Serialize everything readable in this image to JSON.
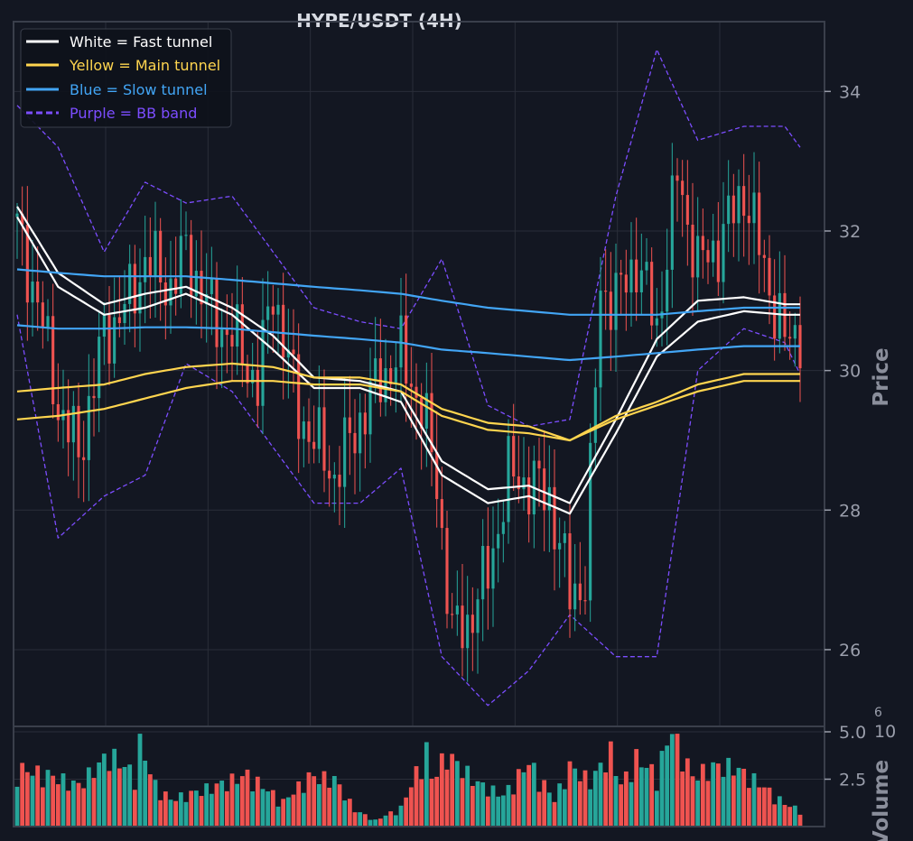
{
  "colors": {
    "background": "#131722",
    "grid": "#2a2e39",
    "frame": "#3a3f4b",
    "candle_up": "#26a69a",
    "candle_down": "#ef5350",
    "fast": "#ffffff",
    "main": "#ffd54f",
    "slow": "#42a5f5",
    "bb": "#7c4dff"
  },
  "chart_data": {
    "type": "line",
    "title": "HYPE/USDT (4H)",
    "price_axis": {
      "label": "Price",
      "ticks": [
        "26",
        "28",
        "30",
        "32",
        "34"
      ],
      "ylim": [
        24.9,
        35
      ]
    },
    "volume_axis": {
      "label": "Volume",
      "multiplier": "10",
      "multiplier_exp": "6",
      "ticks": [
        "2.5",
        "5.0"
      ],
      "ylim": [
        0,
        5.0
      ]
    },
    "legend": {
      "placement": "top-left",
      "entries": [
        {
          "label": "White = Fast tunnel",
          "color": "#ffffff",
          "style": "solid"
        },
        {
          "label": "Yellow = Main tunnel",
          "color": "#ffd54f",
          "style": "solid"
        },
        {
          "label": "Blue = Slow tunnel",
          "color": "#42a5f5",
          "style": "solid"
        },
        {
          "label": "Purple = BB band",
          "color": "#7c4dff",
          "style": "dashed"
        }
      ]
    },
    "x": [
      0,
      8,
      17,
      25,
      33,
      42,
      50,
      58,
      67,
      75,
      83,
      92,
      100,
      108,
      117,
      125,
      133,
      142,
      150,
      153
    ],
    "series": [
      {
        "name": "Fast tunnel upper",
        "color": "#ffffff",
        "values": [
          32.35,
          31.4,
          30.95,
          31.1,
          31.2,
          30.9,
          30.5,
          29.9,
          29.85,
          29.7,
          28.7,
          28.3,
          28.35,
          28.1,
          29.3,
          30.45,
          31.0,
          31.05,
          30.95,
          30.95
        ]
      },
      {
        "name": "Fast tunnel lower",
        "color": "#ffffff",
        "values": [
          32.2,
          31.2,
          30.8,
          30.9,
          31.1,
          30.8,
          30.3,
          29.75,
          29.75,
          29.55,
          28.5,
          28.1,
          28.2,
          27.95,
          29.1,
          30.2,
          30.7,
          30.85,
          30.8,
          30.8
        ]
      },
      {
        "name": "Main tunnel upper",
        "color": "#ffd54f",
        "values": [
          29.7,
          29.75,
          29.8,
          29.95,
          30.05,
          30.1,
          30.05,
          29.9,
          29.9,
          29.8,
          29.45,
          29.25,
          29.2,
          29.0,
          29.35,
          29.55,
          29.8,
          29.95,
          29.95,
          29.95
        ]
      },
      {
        "name": "Main tunnel lower",
        "color": "#ffd54f",
        "values": [
          29.3,
          29.35,
          29.45,
          29.6,
          29.75,
          29.85,
          29.85,
          29.8,
          29.8,
          29.7,
          29.35,
          29.15,
          29.1,
          29.0,
          29.3,
          29.5,
          29.7,
          29.85,
          29.85,
          29.85
        ]
      },
      {
        "name": "Slow tunnel upper",
        "color": "#42a5f5",
        "values": [
          31.45,
          31.4,
          31.35,
          31.35,
          31.35,
          31.3,
          31.25,
          31.2,
          31.15,
          31.1,
          31.0,
          30.9,
          30.85,
          30.8,
          30.8,
          30.8,
          30.85,
          30.9,
          30.9,
          30.9
        ]
      },
      {
        "name": "Slow tunnel lower",
        "color": "#42a5f5",
        "values": [
          30.65,
          30.6,
          30.6,
          30.62,
          30.62,
          30.6,
          30.55,
          30.5,
          30.45,
          30.4,
          30.3,
          30.25,
          30.2,
          30.15,
          30.2,
          30.25,
          30.3,
          30.35,
          30.35,
          30.35
        ]
      },
      {
        "name": "BB upper",
        "color": "#7c4dff",
        "values": [
          33.8,
          33.2,
          31.7,
          32.7,
          32.4,
          32.5,
          31.7,
          30.9,
          30.7,
          30.6,
          31.6,
          29.5,
          29.2,
          29.3,
          32.5,
          34.6,
          33.3,
          33.5,
          33.5,
          33.2
        ]
      },
      {
        "name": "BB lower",
        "color": "#7c4dff",
        "values": [
          30.8,
          27.6,
          28.2,
          28.5,
          30.1,
          29.7,
          28.9,
          28.1,
          28.1,
          28.6,
          25.9,
          25.2,
          25.7,
          26.5,
          25.9,
          25.9,
          30.0,
          30.6,
          30.4,
          29.95
        ]
      }
    ],
    "candles": {
      "count": 154,
      "anchors_x": [
        0,
        4,
        8,
        12,
        17,
        22,
        25,
        30,
        33,
        38,
        42,
        47,
        50,
        55,
        58,
        62,
        67,
        71,
        75,
        79,
        82,
        85,
        88,
        92,
        96,
        100,
        104,
        108,
        111,
        114,
        117,
        121,
        125,
        129,
        133,
        137,
        142,
        147,
        150,
        153
      ],
      "anchors_close": [
        32.0,
        31.0,
        29.5,
        28.8,
        30.5,
        31.0,
        31.6,
        31.2,
        31.7,
        30.8,
        30.5,
        29.8,
        31.2,
        29.4,
        29.0,
        28.5,
        29.3,
        29.9,
        30.2,
        29.5,
        28.4,
        26.2,
        26.4,
        27.1,
        28.5,
        28.4,
        28.2,
        26.8,
        27.0,
        31.2,
        31.0,
        31.6,
        30.6,
        32.8,
        31.5,
        31.8,
        32.6,
        31.2,
        30.4,
        30.6
      ]
    },
    "volume": {
      "max_multiple_of_6": 4.9,
      "anchors_x": [
        0,
        6,
        12,
        18,
        23,
        24,
        27,
        30,
        38,
        45,
        52,
        57,
        62,
        66,
        70,
        75,
        80,
        81,
        84,
        90,
        95,
        100,
        105,
        108,
        112,
        116,
        118,
        121,
        125,
        128,
        132,
        136,
        140,
        145,
        150,
        153
      ],
      "anchors_values": [
        2.8,
        2.5,
        2.0,
        3.5,
        2.5,
        4.0,
        2.0,
        1.3,
        1.9,
        2.5,
        1.2,
        2.4,
        2.3,
        0.8,
        0.3,
        0.9,
        3.7,
        2.3,
        3.5,
        2.1,
        1.5,
        3.1,
        1.3,
        2.9,
        2.2,
        3.6,
        2.0,
        3.3,
        2.5,
        4.8,
        2.4,
        2.9,
        2.9,
        2.1,
        1.1,
        0.8
      ]
    }
  }
}
